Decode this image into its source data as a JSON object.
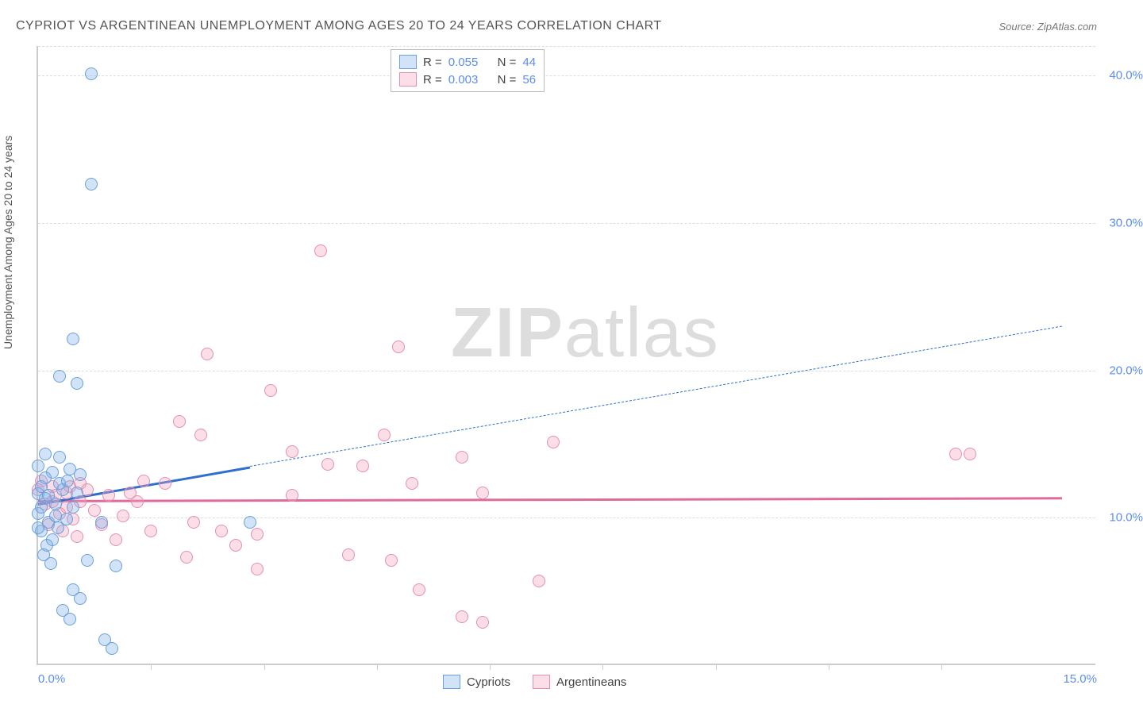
{
  "title": "CYPRIOT VS ARGENTINEAN UNEMPLOYMENT AMONG AGES 20 TO 24 YEARS CORRELATION CHART",
  "source_label": "Source: ZipAtlas.com",
  "y_axis_label": "Unemployment Among Ages 20 to 24 years",
  "watermark": {
    "part1": "ZIP",
    "part2": "atlas"
  },
  "colors": {
    "cypriot_fill": "rgba(125,175,233,0.35)",
    "cypriot_stroke": "#6aa0dc",
    "argentinean_fill": "rgba(244,160,190,0.35)",
    "argentinean_stroke": "#e58fb0",
    "trend_blue": "#2f6fd0",
    "trend_pink": "#e06a9a",
    "grid": "#ddd",
    "axis": "#ccc",
    "tick_text": "#5b8def"
  },
  "plot": {
    "xlim": [
      0,
      15
    ],
    "ylim": [
      0,
      42
    ],
    "y_ticks": [
      {
        "value": 10,
        "label": "10.0%"
      },
      {
        "value": 20,
        "label": "20.0%"
      },
      {
        "value": 30,
        "label": "30.0%"
      },
      {
        "value": 40,
        "label": "40.0%"
      }
    ],
    "x_tick_values": [
      1.6,
      3.2,
      4.8,
      6.4,
      8.0,
      9.6,
      11.2,
      12.8
    ],
    "x_labels": [
      {
        "value": 0,
        "label": "0.0%"
      },
      {
        "value": 15,
        "label": "15.0%"
      }
    ]
  },
  "legend_top": {
    "rows": [
      {
        "swatch": "cypriot",
        "r_label": "R =",
        "r_value": "0.055",
        "n_label": "N =",
        "n_value": "44"
      },
      {
        "swatch": "argentinean",
        "r_label": "R =",
        "r_value": "0.003",
        "n_label": "N =",
        "n_value": "56"
      }
    ]
  },
  "legend_bottom": {
    "items": [
      {
        "swatch": "cypriot",
        "label": "Cypriots"
      },
      {
        "swatch": "argentinean",
        "label": "Argentineans"
      }
    ]
  },
  "series": {
    "cypriots": {
      "trend": {
        "x1": 0,
        "y1": 11.0,
        "x2_solid": 3.0,
        "y2_solid": 13.5,
        "x2_dash": 14.5,
        "y2_dash": 23.0
      },
      "points": [
        [
          0.75,
          40.0
        ],
        [
          0.75,
          32.5
        ],
        [
          0.5,
          22.0
        ],
        [
          0.3,
          19.5
        ],
        [
          0.55,
          19.0
        ],
        [
          0.1,
          14.2
        ],
        [
          0.3,
          14.0
        ],
        [
          0.45,
          13.2
        ],
        [
          0.2,
          13.0
        ],
        [
          0.05,
          12.0
        ],
        [
          0.0,
          11.5
        ],
        [
          0.6,
          12.8
        ],
        [
          0.35,
          11.8
        ],
        [
          0.1,
          11.2
        ],
        [
          0.25,
          10.8
        ],
        [
          0.5,
          10.6
        ],
        [
          0.0,
          10.2
        ],
        [
          0.15,
          9.6
        ],
        [
          0.4,
          9.8
        ],
        [
          0.9,
          9.6
        ],
        [
          0.05,
          9.0
        ],
        [
          0.2,
          8.4
        ],
        [
          0.7,
          7.0
        ],
        [
          1.1,
          6.6
        ],
        [
          0.5,
          5.0
        ],
        [
          0.6,
          4.4
        ],
        [
          0.35,
          3.6
        ],
        [
          0.45,
          3.0
        ],
        [
          0.95,
          1.6
        ],
        [
          1.05,
          1.0
        ],
        [
          0.1,
          12.6
        ],
        [
          0.0,
          13.4
        ],
        [
          0.3,
          12.2
        ],
        [
          0.15,
          11.4
        ],
        [
          0.05,
          10.6
        ],
        [
          0.25,
          10.0
        ],
        [
          0.0,
          9.2
        ],
        [
          0.12,
          8.0
        ],
        [
          0.08,
          7.4
        ],
        [
          0.18,
          6.8
        ],
        [
          0.55,
          11.6
        ],
        [
          0.42,
          12.4
        ],
        [
          0.28,
          9.2
        ],
        [
          3.0,
          9.6
        ]
      ]
    },
    "argentineans": {
      "trend": {
        "x1": 0,
        "y1": 11.2,
        "x2": 14.5,
        "y2": 11.4
      },
      "points": [
        [
          4.0,
          28.0
        ],
        [
          2.4,
          21.0
        ],
        [
          5.1,
          21.5
        ],
        [
          3.3,
          18.5
        ],
        [
          2.0,
          16.4
        ],
        [
          2.3,
          15.5
        ],
        [
          4.9,
          15.5
        ],
        [
          6.0,
          14.0
        ],
        [
          4.1,
          13.5
        ],
        [
          7.3,
          15.0
        ],
        [
          13.0,
          14.2
        ],
        [
          13.2,
          14.2
        ],
        [
          5.3,
          12.2
        ],
        [
          6.3,
          11.6
        ],
        [
          3.6,
          11.4
        ],
        [
          2.6,
          9.0
        ],
        [
          3.1,
          8.8
        ],
        [
          2.2,
          9.6
        ],
        [
          1.8,
          12.2
        ],
        [
          1.4,
          11.0
        ],
        [
          1.0,
          11.4
        ],
        [
          0.6,
          11.0
        ],
        [
          0.4,
          10.6
        ],
        [
          0.2,
          11.0
        ],
        [
          0.3,
          10.2
        ],
        [
          0.8,
          10.4
        ],
        [
          1.2,
          10.0
        ],
        [
          0.9,
          9.4
        ],
        [
          0.5,
          9.8
        ],
        [
          0.15,
          9.4
        ],
        [
          0.05,
          12.4
        ],
        [
          0.2,
          12.0
        ],
        [
          0.4,
          11.6
        ],
        [
          0.6,
          12.2
        ],
        [
          2.1,
          7.2
        ],
        [
          2.8,
          8.0
        ],
        [
          3.1,
          6.4
        ],
        [
          4.4,
          7.4
        ],
        [
          5.0,
          7.0
        ],
        [
          5.4,
          5.0
        ],
        [
          6.0,
          3.2
        ],
        [
          6.3,
          2.8
        ],
        [
          7.1,
          5.6
        ],
        [
          4.6,
          13.4
        ],
        [
          3.6,
          14.4
        ],
        [
          0.0,
          11.8
        ],
        [
          0.1,
          10.8
        ],
        [
          0.25,
          11.4
        ],
        [
          0.45,
          12.0
        ],
        [
          0.7,
          11.8
        ],
        [
          1.1,
          8.4
        ],
        [
          1.6,
          9.0
        ],
        [
          0.35,
          9.0
        ],
        [
          0.55,
          8.6
        ],
        [
          1.3,
          11.6
        ],
        [
          1.5,
          12.4
        ]
      ]
    }
  }
}
